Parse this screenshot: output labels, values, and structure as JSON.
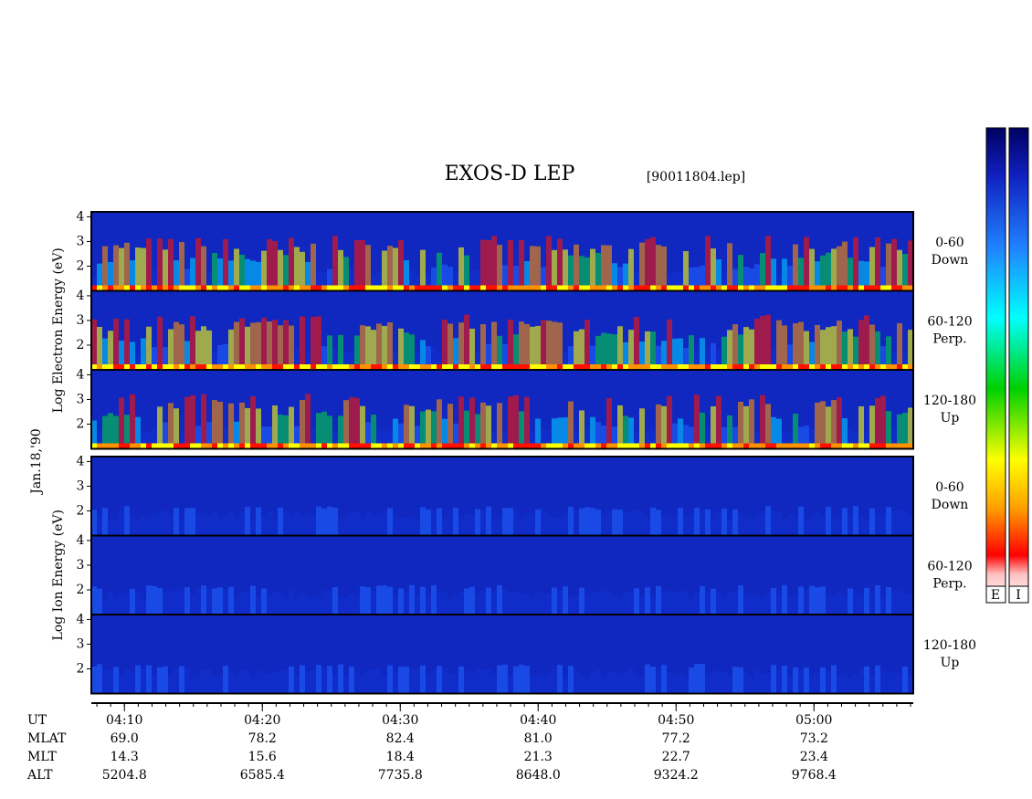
{
  "chart_data": {
    "type": "spectrogram",
    "title": "EXOS-D LEP",
    "subtitle": "[90011804.lep]",
    "date": "Jan.18,'90",
    "groups": [
      {
        "label": "Log Electron Energy (eV)",
        "panels": [
          {
            "pitch": "0-60",
            "dir": "Down"
          },
          {
            "pitch": "60-120",
            "dir": "Perp."
          },
          {
            "pitch": "120-180",
            "dir": "Up"
          }
        ]
      },
      {
        "label": "Log Ion Energy (eV)",
        "panels": [
          {
            "pitch": "0-60",
            "dir": "Down"
          },
          {
            "pitch": "60-120",
            "dir": "Perp."
          },
          {
            "pitch": "120-180",
            "dir": "Up"
          }
        ]
      }
    ],
    "ylim": [
      1,
      4.2
    ],
    "yticks": [
      2,
      3,
      4
    ],
    "x_name": "UT",
    "xlim": [
      7.6,
      67.2
    ],
    "xticks": [
      {
        "value": 10,
        "label": "04:10"
      },
      {
        "value": 20,
        "label": "04:20"
      },
      {
        "value": 30,
        "label": "04:30"
      },
      {
        "value": 40,
        "label": "04:40"
      },
      {
        "value": 50,
        "label": "04:50"
      },
      {
        "value": 60,
        "label": "05:00"
      }
    ],
    "rows": [
      {
        "name": "MLAT",
        "values": [
          "69.0",
          "78.2",
          "82.4",
          "81.0",
          "77.2",
          "73.2"
        ]
      },
      {
        "name": "MLT",
        "values": [
          "14.3",
          "15.6",
          "18.4",
          "21.3",
          "22.7",
          "23.4"
        ]
      },
      {
        "name": "ALT",
        "values": [
          "5204.8",
          "6585.4",
          "7735.8",
          "8648.0",
          "9324.2",
          "9768.4"
        ]
      }
    ],
    "colorbars": [
      "E",
      "I"
    ]
  }
}
